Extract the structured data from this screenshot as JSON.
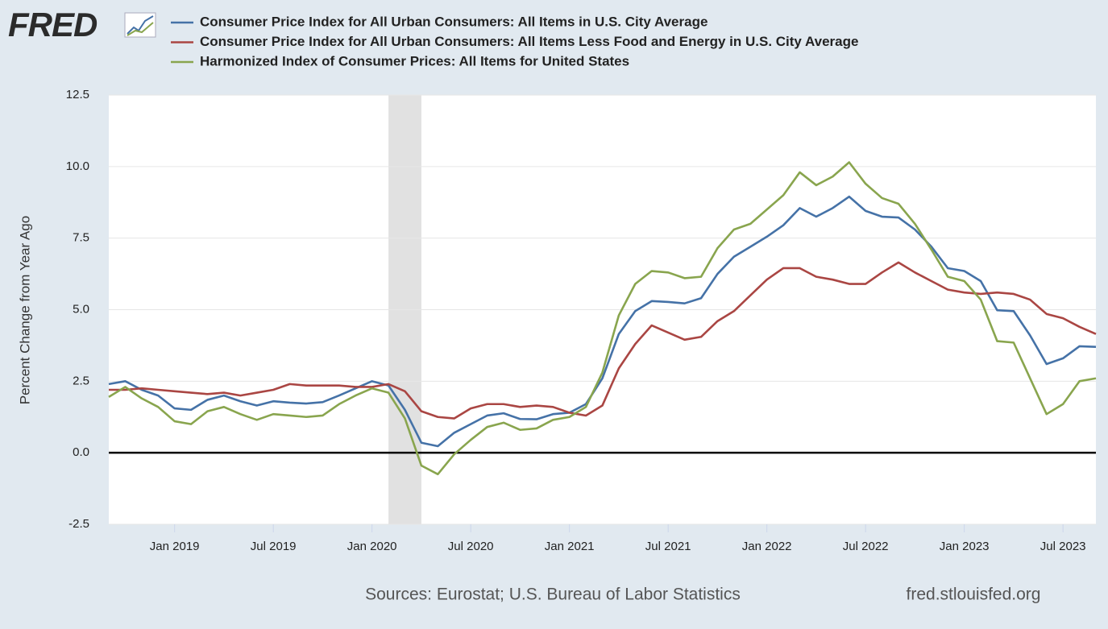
{
  "chart_data": {
    "type": "line",
    "logo": "FRED",
    "y_label": "Percent Change from Year Ago",
    "sources": "Sources: Eurostat; U.S. Bureau of Labor Statistics",
    "website": "fred.stlouisfed.org",
    "x": [
      "2018-09",
      "2018-10",
      "2018-11",
      "2018-12",
      "2019-01",
      "2019-02",
      "2019-03",
      "2019-04",
      "2019-05",
      "2019-06",
      "2019-07",
      "2019-08",
      "2019-09",
      "2019-10",
      "2019-11",
      "2019-12",
      "2020-01",
      "2020-02",
      "2020-03",
      "2020-04",
      "2020-05",
      "2020-06",
      "2020-07",
      "2020-08",
      "2020-09",
      "2020-10",
      "2020-11",
      "2020-12",
      "2021-01",
      "2021-02",
      "2021-03",
      "2021-04",
      "2021-05",
      "2021-06",
      "2021-07",
      "2021-08",
      "2021-09",
      "2021-10",
      "2021-11",
      "2021-12",
      "2022-01",
      "2022-02",
      "2022-03",
      "2022-04",
      "2022-05",
      "2022-06",
      "2022-07",
      "2022-08",
      "2022-09",
      "2022-10",
      "2022-11",
      "2022-12",
      "2023-01",
      "2023-02",
      "2023-03",
      "2023-04",
      "2023-05",
      "2023-06",
      "2023-07",
      "2023-08",
      "2023-09"
    ],
    "series": [
      {
        "name": "Consumer Price Index for All Urban Consumers: All Items in U.S. City Average",
        "color": "#4572a7",
        "values": [
          2.4,
          2.5,
          2.2,
          2.0,
          1.55,
          1.5,
          1.85,
          2.0,
          1.8,
          1.65,
          1.8,
          1.75,
          1.72,
          1.77,
          2.0,
          2.25,
          2.5,
          2.35,
          1.5,
          0.35,
          0.23,
          0.7,
          1.0,
          1.3,
          1.38,
          1.18,
          1.17,
          1.35,
          1.4,
          1.7,
          2.6,
          4.15,
          4.95,
          5.3,
          5.27,
          5.22,
          5.4,
          6.25,
          6.85,
          7.2,
          7.55,
          7.95,
          8.55,
          8.25,
          8.55,
          8.95,
          8.45,
          8.25,
          8.22,
          7.8,
          7.2,
          6.45,
          6.35,
          6.0,
          4.98,
          4.95,
          4.1,
          3.1,
          3.3,
          3.72,
          3.7
        ]
      },
      {
        "name": "Consumer Price Index for All Urban Consumers: All Items Less Food and Energy in U.S. City Average",
        "color": "#aa4643",
        "values": [
          2.2,
          2.2,
          2.25,
          2.2,
          2.15,
          2.1,
          2.05,
          2.1,
          2.0,
          2.1,
          2.2,
          2.4,
          2.35,
          2.35,
          2.35,
          2.3,
          2.3,
          2.4,
          2.15,
          1.45,
          1.25,
          1.2,
          1.55,
          1.7,
          1.7,
          1.6,
          1.65,
          1.6,
          1.4,
          1.3,
          1.65,
          2.95,
          3.8,
          4.45,
          4.2,
          3.95,
          4.05,
          4.6,
          4.95,
          5.5,
          6.05,
          6.45,
          6.45,
          6.15,
          6.05,
          5.9,
          5.9,
          6.3,
          6.65,
          6.3,
          6.0,
          5.7,
          5.6,
          5.55,
          5.6,
          5.55,
          5.35,
          4.85,
          4.7,
          4.4,
          4.15
        ]
      },
      {
        "name": "Harmonized Index of Consumer Prices: All Items for United States",
        "color": "#89a54e",
        "values": [
          1.95,
          2.3,
          1.9,
          1.6,
          1.1,
          1.0,
          1.45,
          1.6,
          1.35,
          1.15,
          1.35,
          1.3,
          1.25,
          1.3,
          1.7,
          2.0,
          2.25,
          2.1,
          1.2,
          -0.45,
          -0.75,
          -0.05,
          0.45,
          0.9,
          1.05,
          0.8,
          0.85,
          1.15,
          1.25,
          1.6,
          2.8,
          4.8,
          5.9,
          6.35,
          6.3,
          6.1,
          6.15,
          7.15,
          7.8,
          8.0,
          8.5,
          9.0,
          9.8,
          9.35,
          9.65,
          10.15,
          9.4,
          8.9,
          8.7,
          8.0,
          7.1,
          6.15,
          6.0,
          5.35,
          3.9,
          3.85,
          2.6,
          1.35,
          1.7,
          2.5,
          2.6
        ]
      }
    ],
    "xlim": [
      "2018-09",
      "2023-09"
    ],
    "xticks": [
      {
        "value": "2019-01",
        "label": "Jan 2019"
      },
      {
        "value": "2019-07",
        "label": "Jul 2019"
      },
      {
        "value": "2020-01",
        "label": "Jan 2020"
      },
      {
        "value": "2020-07",
        "label": "Jul 2020"
      },
      {
        "value": "2021-01",
        "label": "Jan 2021"
      },
      {
        "value": "2021-07",
        "label": "Jul 2021"
      },
      {
        "value": "2022-01",
        "label": "Jan 2022"
      },
      {
        "value": "2022-07",
        "label": "Jul 2022"
      },
      {
        "value": "2023-01",
        "label": "Jan 2023"
      },
      {
        "value": "2023-07",
        "label": "Jul 2023"
      }
    ],
    "ylim": [
      -2.5,
      12.5
    ],
    "yticks": [
      -2.5,
      {
        "value": 0,
        "label": "0.0"
      },
      2.5,
      {
        "value": 5,
        "label": "5.0"
      },
      7.5,
      {
        "value": 10,
        "label": "10.0"
      },
      12.5
    ],
    "grid": true,
    "zero_line": true,
    "shaded": [
      {
        "start": "2020-02",
        "end": "2020-04"
      }
    ]
  }
}
